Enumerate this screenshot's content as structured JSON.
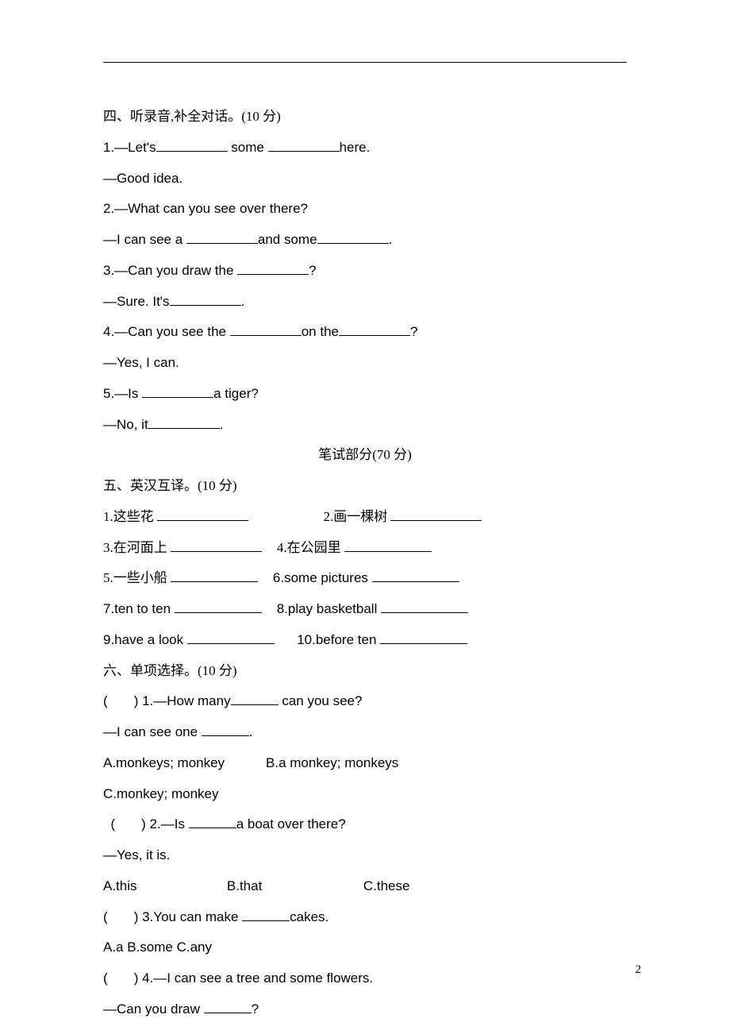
{
  "page_number": "2",
  "top_rule_present": true,
  "colors": {
    "text": "#000000",
    "background": "#ffffff",
    "rule": "#000000"
  },
  "typography": {
    "body_fontsize_pt": 12,
    "body_line_height": 2.28,
    "cjk_font": "SimSun",
    "latin_font": "Arial"
  },
  "section4": {
    "heading": "四、听录音,补全对话。(10 分)",
    "items": [
      {
        "pre": "1.—Let's",
        "mid": " some ",
        "post": "here."
      },
      {
        "text": "—Good idea."
      },
      {
        "text": "2.—What can you see over there?"
      },
      {
        "pre": "—I can see a ",
        "mid": "and some",
        "post": "."
      },
      {
        "pre": "3.—Can you draw the ",
        "post": "?"
      },
      {
        "pre": "—Sure. It's",
        "post": "."
      },
      {
        "pre": "4.—Can you see the ",
        "mid": "on the",
        "post": "?"
      },
      {
        "text": "—Yes, I can."
      },
      {
        "pre": "5.—Is ",
        "post": "a tiger?"
      },
      {
        "pre": "—No, it",
        "post": "."
      }
    ]
  },
  "written_header": "笔试部分(70 分)",
  "section5": {
    "heading": "五、英汉互译。(10 分)",
    "rows": [
      {
        "l": "1.这些花 ",
        "r": "2.画一棵树 "
      },
      {
        "l": "3.在河面上 ",
        "r": "4.在公园里 "
      },
      {
        "l": "5.一些小船 ",
        "r": "6.some pictures "
      },
      {
        "l": "7.ten to ten ",
        "r": "8.play basketball "
      },
      {
        "l": "9.have a look ",
        "r": "10.before ten "
      }
    ]
  },
  "section6": {
    "heading": "六、单项选择。(10 分)",
    "q1": {
      "stem_pre": "(       ) 1.—How many",
      "stem_post": " can you see?",
      "line2_pre": "—I can see one ",
      "line2_post": ".",
      "optA": "A.monkeys; monkey",
      "optB": "B.a monkey; monkeys",
      "optC": "C.monkey; monkey"
    },
    "q2": {
      "stem_pre": "  (       ) 2.—Is ",
      "stem_post": "a boat over there?",
      "line2": "—Yes, it is.",
      "optA": "A.this",
      "optB": "B.that",
      "optC": "C.these"
    },
    "q3": {
      "stem_pre": "(       ) 3.You can make ",
      "stem_post": "cakes.",
      "opts": "A.a B.some C.any"
    },
    "q4": {
      "stem": "(       ) 4.—I can see a tree and some flowers.",
      "line2_pre": "—Can you draw ",
      "line2_post": "?"
    }
  }
}
